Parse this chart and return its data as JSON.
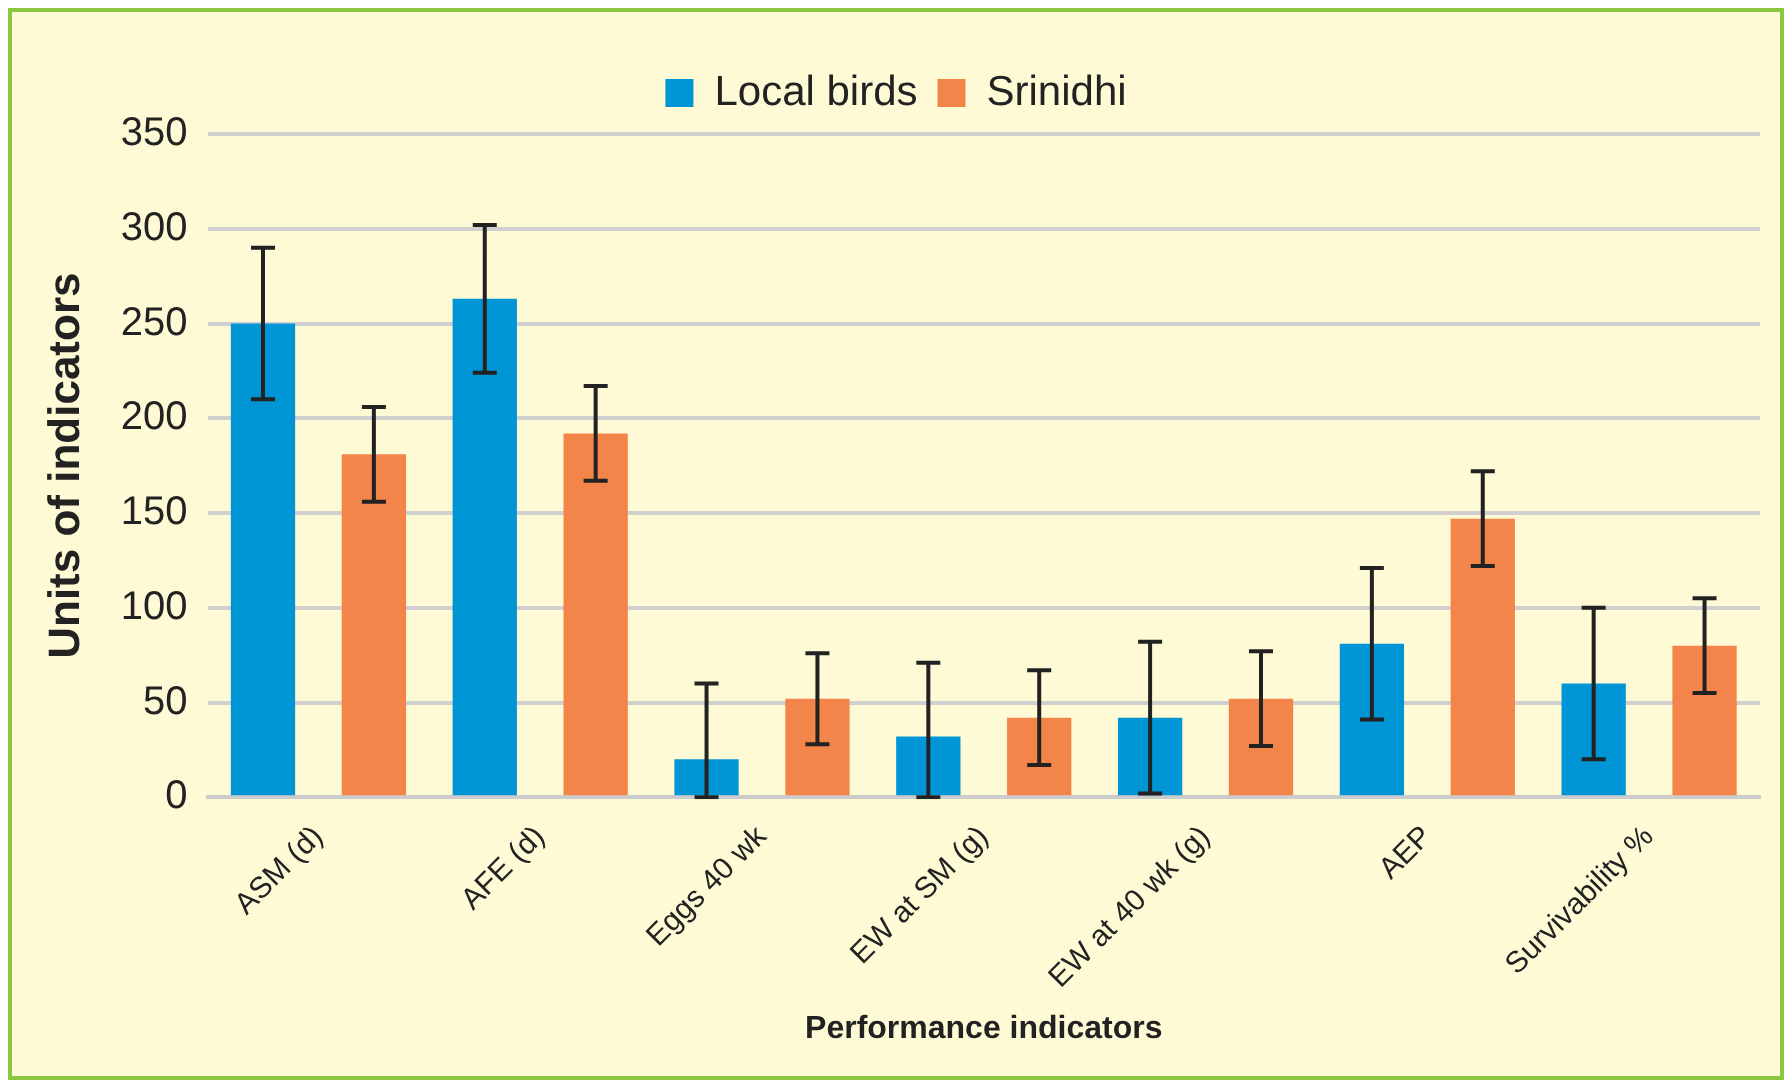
{
  "chart_data": {
    "type": "bar",
    "xlabel": "Performance indicators",
    "ylabel": "Units of indicators",
    "categories": [
      "ASM (d)",
      "AFE (d)",
      "Eggs 40 wk",
      "EW at SM (g)",
      "EW at 40 wk (g)",
      "AEP",
      "Survivability %"
    ],
    "series": [
      {
        "name": "Local birds",
        "color": "#0096d6",
        "values": [
          250,
          263,
          20,
          32,
          42,
          81,
          60
        ],
        "errors": [
          40,
          39,
          [
            0,
            60
          ],
          [
            0,
            71
          ],
          40,
          40,
          40
        ]
      },
      {
        "name": "Srinidhi",
        "color": "#f4854a",
        "values": [
          181,
          192,
          52,
          42,
          52,
          147,
          80
        ],
        "errors": [
          25,
          25,
          24,
          25,
          25,
          25,
          25
        ]
      }
    ],
    "ylim": [
      0,
      350
    ],
    "yticks": [
      0,
      50,
      100,
      150,
      200,
      250,
      300,
      350
    ],
    "grid": "y",
    "legend": "top"
  }
}
